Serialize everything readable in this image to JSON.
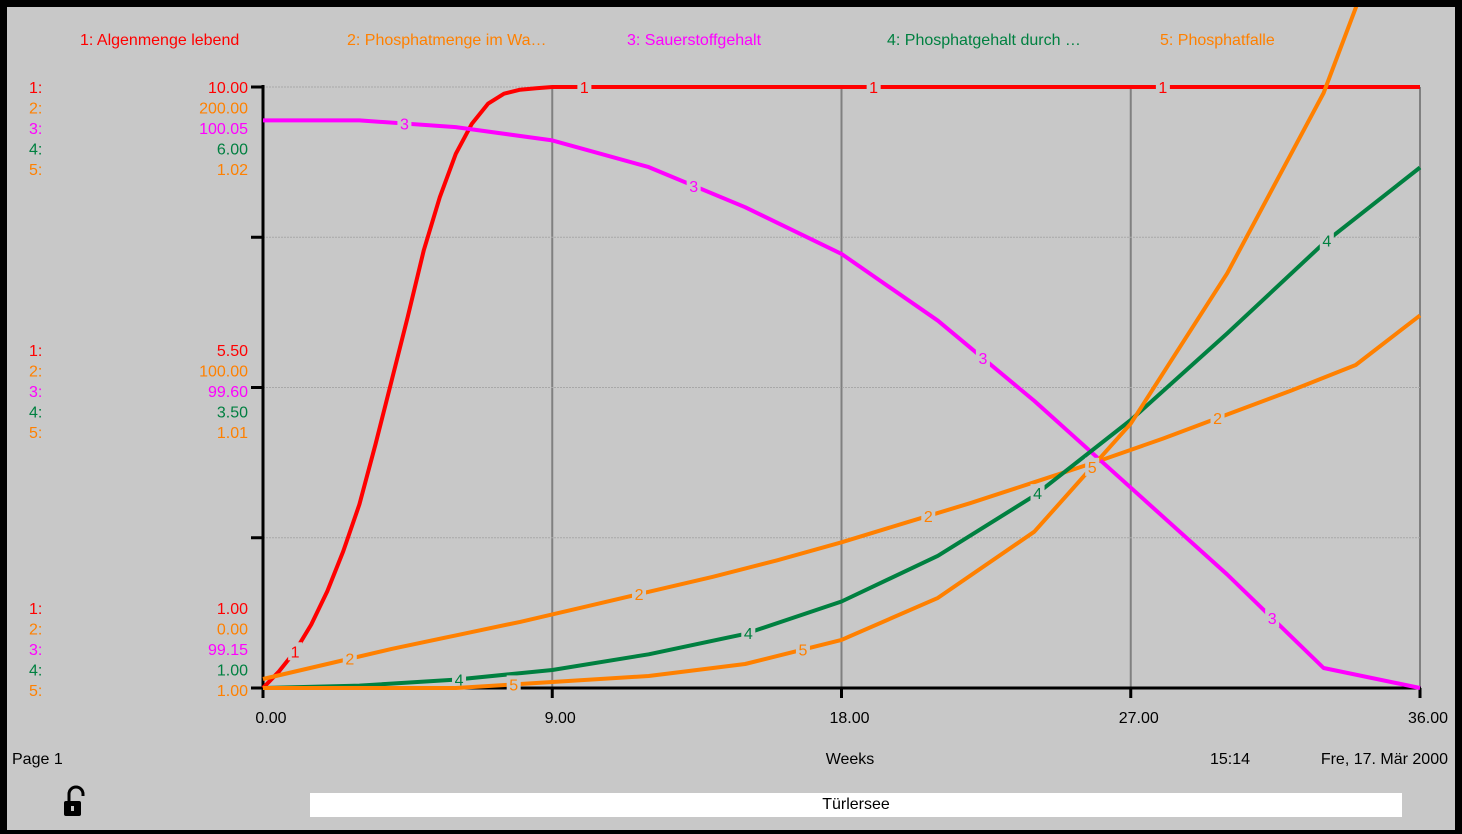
{
  "colors": {
    "s1": "#ff0000",
    "s2": "#ff8000",
    "s3": "#ff00ff",
    "s4": "#008040",
    "s5": "#ff8000",
    "axis": "#000000",
    "grid_major": "#808080",
    "grid_minor": "#a8a8a8",
    "background": "#c8c8c8"
  },
  "footer": {
    "page": "Page 1",
    "xlabel": "Weeks",
    "time": "15:14",
    "date": "Fre, 17. Mär 2000",
    "title": "Türlersee"
  },
  "icons": {
    "lock": "lock-open-icon"
  },
  "chart_data": {
    "type": "line",
    "xlabel": "Weeks",
    "xlim": [
      0,
      36
    ],
    "xticks": [
      "0.00",
      "9.00",
      "18.00",
      "27.00",
      "36.00"
    ],
    "legend_position": "top",
    "grid": true,
    "series": [
      {
        "id": "1",
        "name": "1: Algenmenge lebend",
        "axis_labels": [
          "10.00",
          "5.50",
          "1.00"
        ],
        "ylim": [
          1.0,
          10.0
        ],
        "x": [
          0,
          0.5,
          1,
          1.5,
          2,
          2.5,
          3,
          3.5,
          4,
          4.5,
          5,
          5.5,
          6,
          6.5,
          7,
          7.5,
          8,
          8.5,
          9,
          12,
          18,
          27,
          36
        ],
        "values": [
          1.0,
          1.25,
          1.55,
          1.95,
          2.45,
          3.05,
          3.75,
          4.65,
          5.6,
          6.55,
          7.55,
          8.35,
          9.0,
          9.45,
          9.75,
          9.9,
          9.96,
          9.98,
          10.0,
          10.0,
          10.0,
          10.0,
          10.0
        ]
      },
      {
        "id": "2",
        "name": "2: Phosphatmenge im Wa…",
        "axis_labels": [
          "200.00",
          "100.00",
          "0.00"
        ],
        "ylim": [
          0,
          200
        ],
        "x": [
          0,
          2,
          4,
          6,
          8,
          10,
          12,
          14,
          16,
          18,
          20,
          22,
          24,
          26,
          28,
          30,
          32,
          34,
          36
        ],
        "values": [
          3.0,
          8.0,
          13.0,
          17.5,
          22.0,
          27.0,
          32.0,
          37.0,
          42.5,
          48.5,
          55.0,
          61.5,
          68.5,
          75.5,
          83.0,
          91.0,
          99.0,
          107.5,
          124.0
        ]
      },
      {
        "id": "3",
        "name": "3: Sauerstoffgehalt",
        "axis_labels": [
          "100.05",
          "99.60",
          "99.15"
        ],
        "ylim": [
          99.15,
          100.05
        ],
        "x": [
          0,
          3,
          6,
          9,
          12,
          15,
          18,
          21,
          24,
          27,
          30,
          33,
          36
        ],
        "values": [
          100.0,
          100.0,
          99.99,
          99.97,
          99.93,
          99.87,
          99.8,
          99.7,
          99.58,
          99.45,
          99.32,
          99.18,
          99.15
        ]
      },
      {
        "id": "4",
        "name": "4: Phosphatgehalt durch …",
        "axis_labels": [
          "6.00",
          "3.50",
          "1.00"
        ],
        "ylim": [
          1.0,
          6.0
        ],
        "x": [
          0,
          3,
          6,
          9,
          12,
          15,
          18,
          21,
          24,
          27,
          30,
          33,
          36
        ],
        "values": [
          1.0,
          1.02,
          1.07,
          1.15,
          1.28,
          1.45,
          1.72,
          2.1,
          2.6,
          3.23,
          3.95,
          4.7,
          5.33
        ]
      },
      {
        "id": "5",
        "name": "5: Phosphatfalle",
        "axis_labels": [
          "1.02",
          "1.01",
          "1.00"
        ],
        "ylim": [
          1.0,
          1.02
        ],
        "x": [
          0,
          3,
          6,
          9,
          12,
          15,
          18,
          21,
          24,
          27,
          30,
          33,
          36
        ],
        "values": [
          1.0,
          1.0,
          1.0,
          1.0002,
          1.0004,
          1.0008,
          1.0016,
          1.003,
          1.0052,
          1.0088,
          1.0138,
          1.0198,
          1.0283
        ]
      }
    ]
  }
}
